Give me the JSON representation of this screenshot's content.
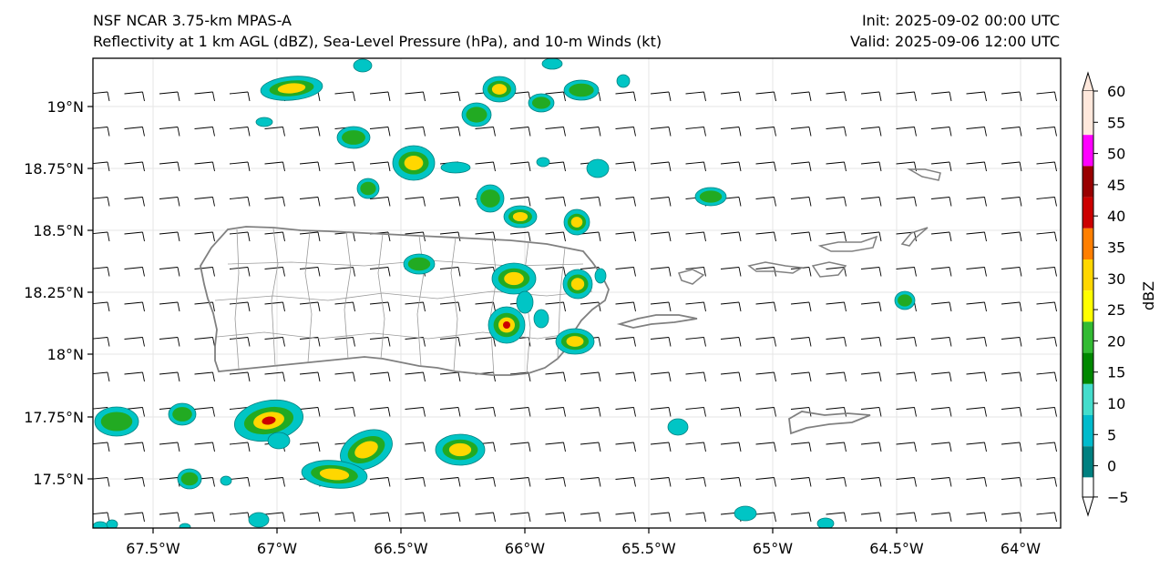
{
  "header": {
    "title_line1": "NSF NCAR 3.75-km MPAS-A",
    "title_line2": "Reflectivity at 1 km AGL (dBZ), Sea-Level Pressure (hPa), and 10-m Winds (kt)",
    "init": "Init: 2025-09-02 00:00 UTC",
    "valid": "Valid: 2025-09-06 12:00 UTC"
  },
  "map": {
    "lon_ticks": [
      "67.5°W",
      "67°W",
      "66.5°W",
      "66°W",
      "65.5°W",
      "65°W",
      "64.5°W",
      "64°W"
    ],
    "lat_ticks": [
      "19°N",
      "18.75°N",
      "18.5°N",
      "18.25°N",
      "18°N",
      "17.75°N",
      "17.5°N"
    ]
  },
  "colorbar": {
    "label": "dBZ",
    "ticks": [
      "60",
      "55",
      "50",
      "45",
      "40",
      "35",
      "30",
      "25",
      "20",
      "15",
      "10",
      "5",
      "0",
      "−5"
    ],
    "colors": [
      "#ffe8dc",
      "#ff00ff",
      "#990000",
      "#cc0000",
      "#ff7f00",
      "#ffd700",
      "#ffff00",
      "#33bb33",
      "#008800",
      "#44ddcc",
      "#00bbcc",
      "#008080",
      "#ffffff"
    ]
  },
  "colors": {
    "coast": "#808080",
    "cell_outer": "#00c5c5",
    "cell_mid": "#22aa22",
    "cell_inner": "#ffd700",
    "cell_core": "#cc0000"
  }
}
